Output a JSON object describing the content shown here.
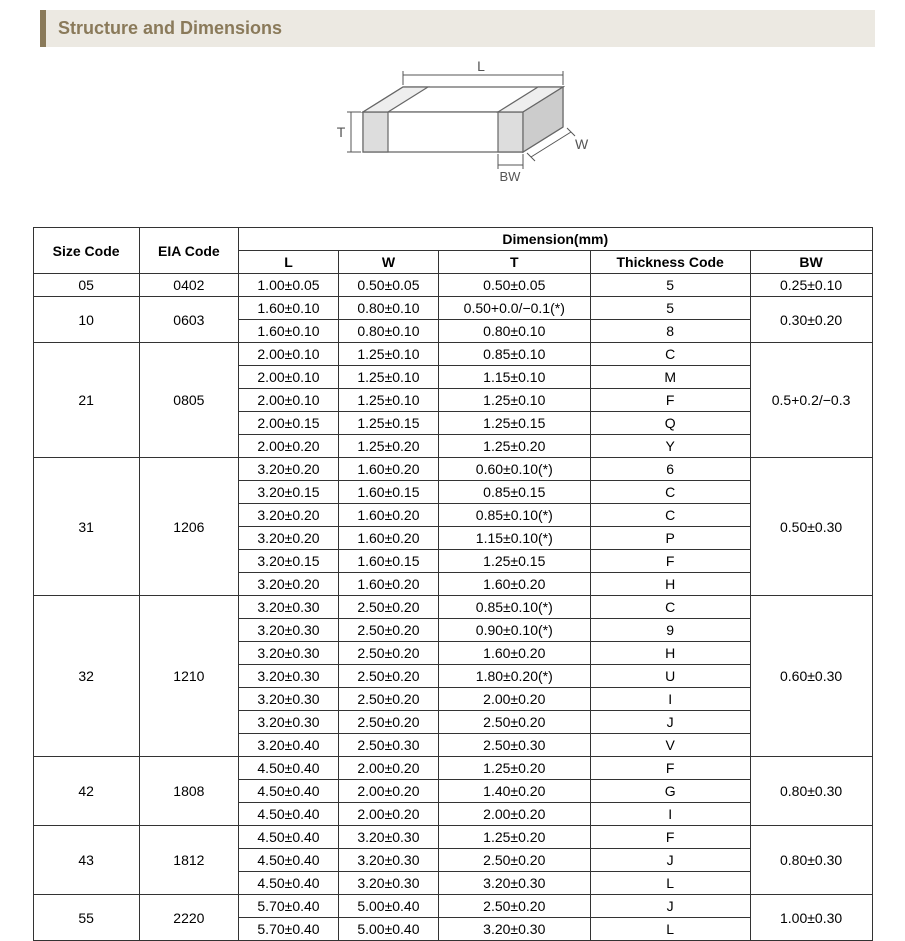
{
  "header": {
    "title": "Structure and Dimensions"
  },
  "diagram": {
    "labels": {
      "L": "L",
      "W": "W",
      "T": "T",
      "BW": "BW"
    },
    "stroke_color": "#666666",
    "label_color": "#555555"
  },
  "table": {
    "columns": {
      "size_code": "Size Code",
      "eia_code": "EIA Code",
      "dimension_header": "Dimension(mm)",
      "L": "L",
      "W": "W",
      "T": "T",
      "thickness_code": "Thickness Code",
      "BW": "BW"
    },
    "groups": [
      {
        "size_code": "05",
        "eia_code": "0402",
        "bw": "0.25±0.10",
        "rows": [
          {
            "L": "1.00±0.05",
            "W": "0.50±0.05",
            "T": "0.50±0.05",
            "tc": "5"
          }
        ]
      },
      {
        "size_code": "10",
        "eia_code": "0603",
        "bw": "0.30±0.20",
        "rows": [
          {
            "L": "1.60±0.10",
            "W": "0.80±0.10",
            "T": "0.50+0.0/−0.1(*)",
            "tc": "5"
          },
          {
            "L": "1.60±0.10",
            "W": "0.80±0.10",
            "T": "0.80±0.10",
            "tc": "8"
          }
        ]
      },
      {
        "size_code": "21",
        "eia_code": "0805",
        "bw": "0.5+0.2/−0.3",
        "rows": [
          {
            "L": "2.00±0.10",
            "W": "1.25±0.10",
            "T": "0.85±0.10",
            "tc": "C"
          },
          {
            "L": "2.00±0.10",
            "W": "1.25±0.10",
            "T": "1.15±0.10",
            "tc": "M"
          },
          {
            "L": "2.00±0.10",
            "W": "1.25±0.10",
            "T": "1.25±0.10",
            "tc": "F"
          },
          {
            "L": "2.00±0.15",
            "W": "1.25±0.15",
            "T": "1.25±0.15",
            "tc": "Q"
          },
          {
            "L": "2.00±0.20",
            "W": "1.25±0.20",
            "T": "1.25±0.20",
            "tc": "Y"
          }
        ]
      },
      {
        "size_code": "31",
        "eia_code": "1206",
        "bw": "0.50±0.30",
        "rows": [
          {
            "L": "3.20±0.20",
            "W": "1.60±0.20",
            "T": "0.60±0.10(*)",
            "tc": "6"
          },
          {
            "L": "3.20±0.15",
            "W": "1.60±0.15",
            "T": "0.85±0.15",
            "tc": "C"
          },
          {
            "L": "3.20±0.20",
            "W": "1.60±0.20",
            "T": "0.85±0.10(*)",
            "tc": "C"
          },
          {
            "L": "3.20±0.20",
            "W": "1.60±0.20",
            "T": "1.15±0.10(*)",
            "tc": "P"
          },
          {
            "L": "3.20±0.15",
            "W": "1.60±0.15",
            "T": "1.25±0.15",
            "tc": "F"
          },
          {
            "L": "3.20±0.20",
            "W": "1.60±0.20",
            "T": "1.60±0.20",
            "tc": "H"
          }
        ]
      },
      {
        "size_code": "32",
        "eia_code": "1210",
        "bw": "0.60±0.30",
        "rows": [
          {
            "L": "3.20±0.30",
            "W": "2.50±0.20",
            "T": "0.85±0.10(*)",
            "tc": "C"
          },
          {
            "L": "3.20±0.30",
            "W": "2.50±0.20",
            "T": "0.90±0.10(*)",
            "tc": "9"
          },
          {
            "L": "3.20±0.30",
            "W": "2.50±0.20",
            "T": "1.60±0.20",
            "tc": "H"
          },
          {
            "L": "3.20±0.30",
            "W": "2.50±0.20",
            "T": "1.80±0.20(*)",
            "tc": "U"
          },
          {
            "L": "3.20±0.30",
            "W": "2.50±0.20",
            "T": "2.00±0.20",
            "tc": "I"
          },
          {
            "L": "3.20±0.30",
            "W": "2.50±0.20",
            "T": "2.50±0.20",
            "tc": "J"
          },
          {
            "L": "3.20±0.40",
            "W": "2.50±0.30",
            "T": "2.50±0.30",
            "tc": "V"
          }
        ]
      },
      {
        "size_code": "42",
        "eia_code": "1808",
        "bw": "0.80±0.30",
        "rows": [
          {
            "L": "4.50±0.40",
            "W": "2.00±0.20",
            "T": "1.25±0.20",
            "tc": "F"
          },
          {
            "L": "4.50±0.40",
            "W": "2.00±0.20",
            "T": "1.40±0.20",
            "tc": "G"
          },
          {
            "L": "4.50±0.40",
            "W": "2.00±0.20",
            "T": "2.00±0.20",
            "tc": "I"
          }
        ]
      },
      {
        "size_code": "43",
        "eia_code": "1812",
        "bw": "0.80±0.30",
        "rows": [
          {
            "L": "4.50±0.40",
            "W": "3.20±0.30",
            "T": "1.25±0.20",
            "tc": "F"
          },
          {
            "L": "4.50±0.40",
            "W": "3.20±0.30",
            "T": "2.50±0.20",
            "tc": "J"
          },
          {
            "L": "4.50±0.40",
            "W": "3.20±0.30",
            "T": "3.20±0.30",
            "tc": "L"
          }
        ]
      },
      {
        "size_code": "55",
        "eia_code": "2220",
        "bw": "1.00±0.30",
        "rows": [
          {
            "L": "5.70±0.40",
            "W": "5.00±0.40",
            "T": "2.50±0.20",
            "tc": "J"
          },
          {
            "L": "5.70±0.40",
            "W": "5.00±0.40",
            "T": "3.20±0.30",
            "tc": "L"
          }
        ]
      }
    ]
  }
}
